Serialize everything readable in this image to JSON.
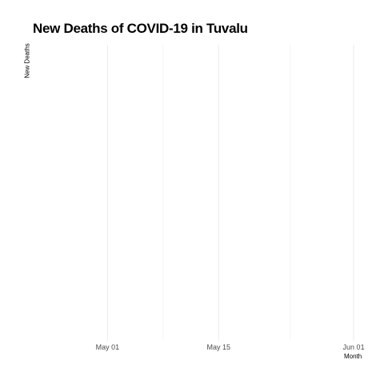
{
  "chart_data": {
    "type": "line",
    "title": "New Deaths of COVID-19 in Tuvalu",
    "xlabel": "Month",
    "ylabel": "New Deaths",
    "x_axis": {
      "scale": "date",
      "range": [
        "2020-04-22",
        "2020-06-02"
      ],
      "major_ticks": [
        {
          "date": "2020-05-01",
          "label": "May 01"
        },
        {
          "date": "2020-05-15",
          "label": "May 15"
        },
        {
          "date": "2020-06-01",
          "label": "Jun 01"
        }
      ],
      "minor_ticks": [
        "2020-05-08",
        "2020-05-24"
      ]
    },
    "series": [],
    "grid": "vertical-only",
    "legend": "none",
    "colors": {
      "grid_major": "#ebebeb",
      "grid_minor": "#f2f2f2",
      "tick_text": "#4d4d4d"
    }
  }
}
